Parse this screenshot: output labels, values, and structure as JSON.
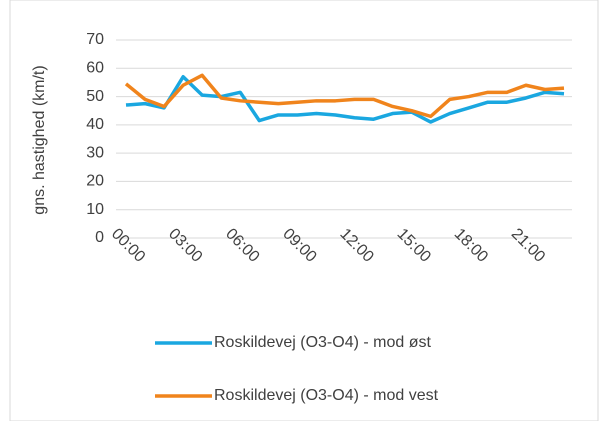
{
  "chart_data": {
    "type": "line",
    "y_label": "gns. hastighed (km/t)",
    "categories": [
      "00:00",
      null,
      null,
      "03:00",
      null,
      null,
      "06:00",
      null,
      null,
      "09:00",
      null,
      null,
      "12:00",
      null,
      null,
      "15:00",
      null,
      null,
      "18:00",
      null,
      null,
      "21:00",
      null,
      null
    ],
    "series": [
      {
        "name": "Roskildevej (O3-O4) - mod øst",
        "color": "#1aa7e0",
        "values": [
          47,
          47.5,
          46,
          57,
          50.5,
          50,
          51.5,
          41.5,
          43.5,
          43.5,
          44,
          43.5,
          42.5,
          42,
          44,
          44.5,
          41,
          44,
          46,
          48,
          48,
          49.5,
          51.5,
          51
        ]
      },
      {
        "name": "Roskildevej (O3-O4) - mod vest",
        "color": "#f0841c",
        "values": [
          54.5,
          49,
          46.5,
          54,
          57.5,
          49.5,
          48.5,
          48,
          47.5,
          48,
          48.5,
          48.5,
          49,
          49,
          46.5,
          45,
          43,
          49,
          50,
          51.5,
          51.5,
          54,
          52.5,
          53
        ]
      }
    ],
    "ylim": [
      0,
      70
    ],
    "yticks": [
      0,
      10,
      20,
      30,
      40,
      50,
      60,
      70
    ],
    "grid": true
  }
}
